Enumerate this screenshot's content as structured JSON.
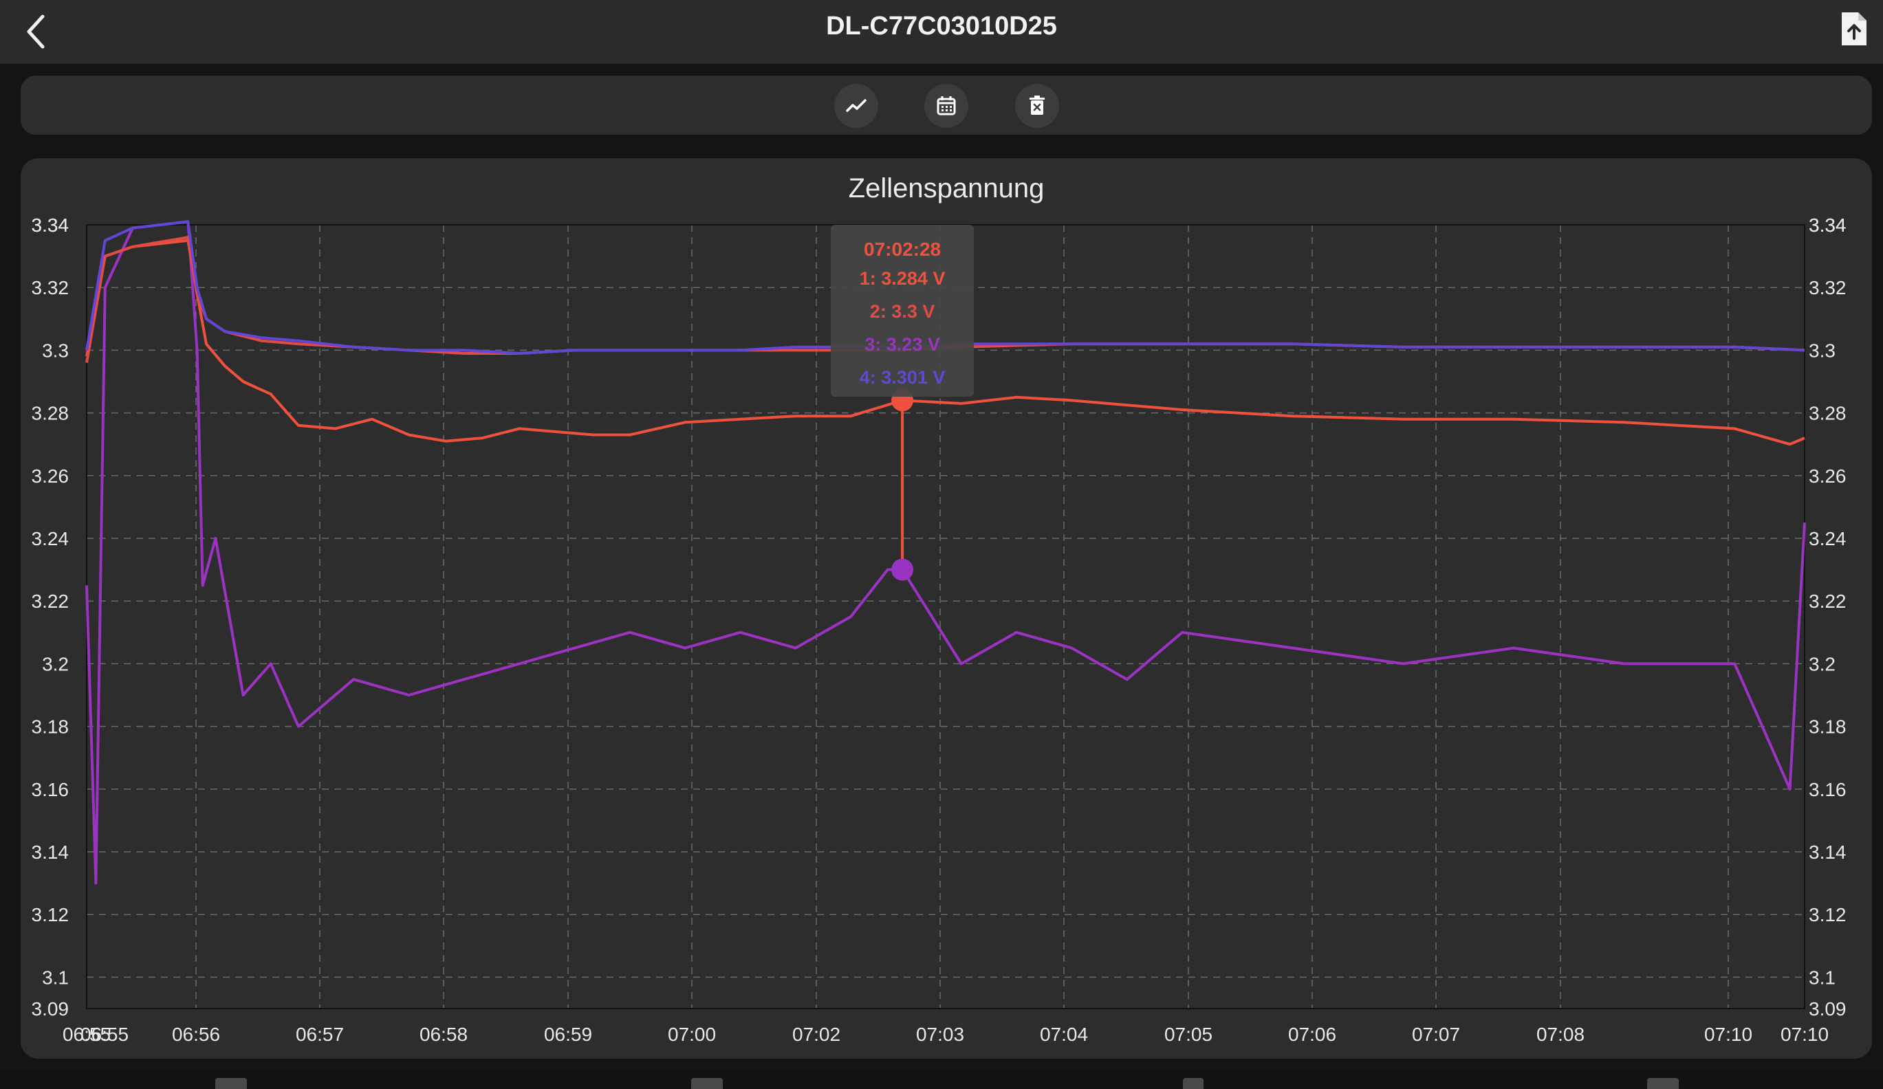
{
  "header": {
    "title": "DL-C77C03010D25"
  },
  "toolbar": {
    "icons": [
      "trend-chart-icon",
      "calendar-icon",
      "delete-icon"
    ]
  },
  "colors": {
    "cell1": "#f0513c",
    "cell2": "#e34b45",
    "cell3": "#9b33c2",
    "cell4": "#6246d6",
    "background": "#2d2d2d"
  },
  "chart_data": {
    "type": "line",
    "title": "Zellenspannung",
    "xlabel": "",
    "ylabel": "",
    "ylim": [
      3.09,
      3.34
    ],
    "y_ticks": [
      "3.34",
      "3.34",
      "3.32",
      "3.3",
      "3.28",
      "3.26",
      "3.24",
      "3.22",
      "3.2",
      "3.18",
      "3.16",
      "3.14",
      "3.12",
      "3.1",
      "3.09"
    ],
    "x_ticks": [
      "06:55",
      "06:55",
      "06:56",
      "06:57",
      "06:58",
      "06:59",
      "07:00",
      "07:02",
      "07:03",
      "07:04",
      "07:05",
      "07:06",
      "07:07",
      "07:08",
      "07:10",
      "07:10"
    ],
    "x_range": [
      "06:55:05",
      "07:10:38"
    ],
    "grid": true,
    "dual_y_axis": true,
    "tooltip": {
      "time": "07:02:28",
      "lines": [
        "1: 3.284 V",
        "2: 3.3 V",
        "3: 3.23 V",
        "4: 3.301 V"
      ]
    },
    "series": [
      {
        "name": "1",
        "x": [
          "06:55:05",
          "06:55:15",
          "06:55:30",
          "06:56:00",
          "06:56:05",
          "06:56:10",
          "06:56:20",
          "06:56:30",
          "06:56:45",
          "06:57:00",
          "06:57:20",
          "06:57:40",
          "06:58:00",
          "06:58:20",
          "06:58:40",
          "06:59:00",
          "06:59:20",
          "06:59:40",
          "07:00:00",
          "07:00:30",
          "07:01:00",
          "07:01:30",
          "07:02:00",
          "07:02:28",
          "07:03:00",
          "07:03:30",
          "07:04:00",
          "07:05:00",
          "07:06:00",
          "07:07:00",
          "07:08:00",
          "07:09:00",
          "07:10:00",
          "07:10:30",
          "07:10:38"
        ],
        "values": [
          3.298,
          3.33,
          3.333,
          3.335,
          3.318,
          3.302,
          3.295,
          3.29,
          3.286,
          3.276,
          3.275,
          3.278,
          3.273,
          3.271,
          3.272,
          3.275,
          3.274,
          3.273,
          3.273,
          3.277,
          3.278,
          3.279,
          3.279,
          3.284,
          3.283,
          3.285,
          3.284,
          3.281,
          3.279,
          3.278,
          3.278,
          3.277,
          3.275,
          3.27,
          3.272
        ]
      },
      {
        "name": "2",
        "x": [
          "06:55:05",
          "06:55:15",
          "06:55:30",
          "06:56:00",
          "06:56:05",
          "06:56:10",
          "06:56:20",
          "06:56:40",
          "06:57:00",
          "06:57:30",
          "06:58:00",
          "06:58:30",
          "06:59:00",
          "06:59:30",
          "07:00:00",
          "07:00:30",
          "07:01:00",
          "07:01:30",
          "07:02:00",
          "07:02:28",
          "07:03:00",
          "07:04:00",
          "07:05:00",
          "07:06:00",
          "07:07:00",
          "07:08:00",
          "07:09:00",
          "07:10:00",
          "07:10:38"
        ],
        "values": [
          3.296,
          3.33,
          3.333,
          3.336,
          3.318,
          3.31,
          3.306,
          3.303,
          3.302,
          3.301,
          3.3,
          3.299,
          3.299,
          3.3,
          3.3,
          3.3,
          3.3,
          3.3,
          3.3,
          3.3,
          3.301,
          3.302,
          3.302,
          3.302,
          3.301,
          3.301,
          3.301,
          3.301,
          3.3
        ]
      },
      {
        "name": "3",
        "x": [
          "06:55:05",
          "06:55:10",
          "06:55:15",
          "06:55:30",
          "06:56:00",
          "06:56:05",
          "06:56:08",
          "06:56:15",
          "06:56:30",
          "06:56:45",
          "06:57:00",
          "06:57:30",
          "06:58:00",
          "06:58:30",
          "06:59:00",
          "06:59:30",
          "07:00:00",
          "07:00:30",
          "07:01:00",
          "07:01:30",
          "07:02:00",
          "07:02:20",
          "07:02:28",
          "07:03:00",
          "07:03:30",
          "07:04:00",
          "07:04:30",
          "07:05:00",
          "07:06:00",
          "07:07:00",
          "07:08:00",
          "07:09:00",
          "07:10:00",
          "07:10:30",
          "07:10:38"
        ],
        "values": [
          3.225,
          3.13,
          3.32,
          3.339,
          3.341,
          3.3,
          3.225,
          3.24,
          3.19,
          3.2,
          3.18,
          3.195,
          3.19,
          3.195,
          3.2,
          3.205,
          3.21,
          3.205,
          3.21,
          3.205,
          3.215,
          3.23,
          3.23,
          3.2,
          3.21,
          3.205,
          3.195,
          3.21,
          3.205,
          3.2,
          3.205,
          3.2,
          3.2,
          3.16,
          3.245
        ]
      },
      {
        "name": "4",
        "x": [
          "06:55:05",
          "06:55:15",
          "06:55:30",
          "06:56:00",
          "06:56:05",
          "06:56:10",
          "06:56:20",
          "06:56:40",
          "06:57:00",
          "06:57:30",
          "06:58:00",
          "06:58:30",
          "06:59:00",
          "06:59:30",
          "07:00:00",
          "07:00:30",
          "07:01:00",
          "07:01:30",
          "07:02:00",
          "07:02:28",
          "07:03:00",
          "07:04:00",
          "07:05:00",
          "07:06:00",
          "07:07:00",
          "07:08:00",
          "07:09:00",
          "07:10:00",
          "07:10:38"
        ],
        "values": [
          3.3,
          3.335,
          3.339,
          3.341,
          3.32,
          3.31,
          3.306,
          3.304,
          3.303,
          3.301,
          3.3,
          3.3,
          3.299,
          3.3,
          3.3,
          3.3,
          3.3,
          3.301,
          3.301,
          3.301,
          3.302,
          3.302,
          3.302,
          3.302,
          3.301,
          3.301,
          3.301,
          3.301,
          3.3
        ]
      }
    ]
  }
}
